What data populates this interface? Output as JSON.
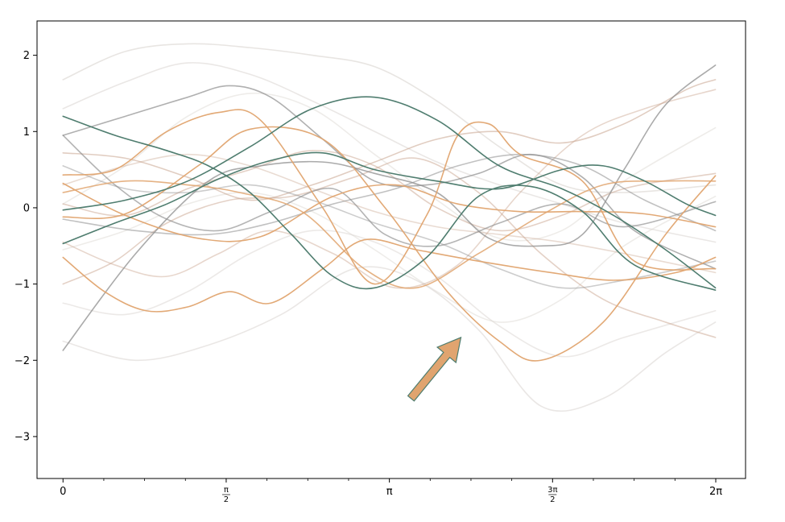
{
  "chart_data": {
    "type": "line",
    "title": "",
    "xlabel": "",
    "ylabel": "",
    "xlim": [
      -0.25,
      6.57
    ],
    "ylim": [
      -3.55,
      2.45
    ],
    "grid": false,
    "legend": "none",
    "x_ticks": [
      {
        "value": 0,
        "label": "0"
      },
      {
        "value": 1.5708,
        "num": "π",
        "den": "2"
      },
      {
        "value": 3.1416,
        "label": "π"
      },
      {
        "value": 4.7124,
        "num": "3π",
        "den": "2"
      },
      {
        "value": 6.2832,
        "label": "2π"
      }
    ],
    "y_ticks": [
      {
        "value": 2,
        "label": "2"
      },
      {
        "value": 1,
        "label": "1"
      },
      {
        "value": 0,
        "label": "0"
      },
      {
        "value": -1,
        "label": "−1"
      },
      {
        "value": -2,
        "label": "−2"
      },
      {
        "value": -3,
        "label": "−3"
      }
    ],
    "colors": {
      "orange": "#e0a46f",
      "teal": "#4f7d6f",
      "gray": "#8e8e8e",
      "tan": "#c9a48e",
      "faint": "#d9d4cf"
    },
    "series": [
      {
        "color": "orange",
        "opacity": 0.95,
        "x": [
          0,
          0.6,
          1.3,
          1.9,
          2.6,
          3.2,
          3.8,
          4.4,
          5.0,
          5.6,
          6.28
        ],
        "y": [
          0.32,
          -0.1,
          -0.4,
          -0.38,
          0.15,
          0.3,
          0.05,
          -0.05,
          -0.05,
          -0.08,
          -0.25
        ]
      },
      {
        "color": "orange",
        "opacity": 0.95,
        "x": [
          0,
          0.6,
          1.3,
          1.8,
          2.5,
          3.1,
          3.7,
          4.2,
          4.6,
          5.2,
          5.8,
          6.28
        ],
        "y": [
          -0.12,
          -0.08,
          0.55,
          1.03,
          0.9,
          0.0,
          -1.1,
          -1.75,
          -2.0,
          -1.5,
          -0.35,
          0.42
        ]
      },
      {
        "color": "orange",
        "opacity": 0.95,
        "x": [
          0,
          0.4,
          0.8,
          1.2,
          1.6,
          2.0,
          2.5,
          2.9,
          3.4,
          4.0,
          4.7,
          5.3,
          5.9,
          6.28
        ],
        "y": [
          -0.65,
          -1.1,
          -1.35,
          -1.3,
          -1.1,
          -1.25,
          -0.8,
          -0.42,
          -0.55,
          -0.7,
          -0.85,
          -0.95,
          -0.85,
          -0.65
        ]
      },
      {
        "color": "orange",
        "opacity": 0.95,
        "x": [
          0,
          0.5,
          1.0,
          1.5,
          1.9,
          2.5,
          3.0,
          3.5,
          3.8,
          4.1,
          4.4,
          5.0,
          5.5,
          6.28
        ],
        "y": [
          0.43,
          0.5,
          1.0,
          1.25,
          1.15,
          0.0,
          -1.0,
          -0.1,
          0.95,
          1.1,
          0.7,
          0.35,
          -0.7,
          -0.8
        ]
      },
      {
        "color": "orange",
        "opacity": 0.85,
        "x": [
          0,
          0.6,
          1.2,
          1.7,
          2.3,
          2.9,
          3.4,
          4.0,
          4.6,
          5.2,
          5.8,
          6.28
        ],
        "y": [
          0.2,
          0.35,
          0.3,
          0.2,
          -0.05,
          -0.8,
          -1.05,
          -0.6,
          -0.1,
          0.3,
          0.35,
          0.35
        ]
      },
      {
        "color": "teal",
        "opacity": 1.0,
        "x": [
          0,
          0.5,
          1.0,
          1.4,
          1.8,
          2.2,
          2.6,
          3.0,
          3.5,
          4.0,
          4.5,
          5.0,
          5.5,
          6.28
        ],
        "y": [
          1.2,
          0.95,
          0.75,
          0.55,
          0.2,
          -0.35,
          -0.9,
          -1.05,
          -0.65,
          0.15,
          0.28,
          -0.05,
          -0.75,
          -1.08
        ]
      },
      {
        "color": "teal",
        "opacity": 1.0,
        "x": [
          0,
          0.6,
          1.2,
          1.8,
          2.4,
          3.0,
          3.6,
          4.2,
          4.8,
          5.3,
          5.8,
          6.28
        ],
        "y": [
          -0.03,
          0.1,
          0.35,
          0.8,
          1.3,
          1.45,
          1.15,
          0.55,
          0.25,
          -0.1,
          -0.55,
          -1.05
        ]
      },
      {
        "color": "teal",
        "opacity": 1.0,
        "x": [
          0,
          0.5,
          1.0,
          1.5,
          2.0,
          2.5,
          3.0,
          3.6,
          4.2,
          4.8,
          5.2,
          5.6,
          6.0,
          6.28
        ],
        "y": [
          -0.47,
          -0.2,
          0.05,
          0.38,
          0.62,
          0.72,
          0.5,
          0.35,
          0.25,
          0.5,
          0.55,
          0.35,
          0.05,
          -0.1
        ]
      },
      {
        "color": "gray",
        "opacity": 0.75,
        "x": [
          0,
          0.7,
          1.4,
          1.9,
          2.5,
          3.0,
          3.6,
          4.1,
          4.6,
          5.0,
          5.4,
          5.8,
          6.28
        ],
        "y": [
          -1.87,
          -0.6,
          0.35,
          0.55,
          0.6,
          0.45,
          0.2,
          -0.4,
          -0.5,
          -0.35,
          0.5,
          1.35,
          1.87
        ]
      },
      {
        "color": "gray",
        "opacity": 0.7,
        "x": [
          0,
          0.6,
          1.2,
          1.6,
          2.0,
          2.5,
          3.0,
          3.5,
          4.0,
          4.5,
          5.0,
          5.5,
          6.28
        ],
        "y": [
          0.95,
          1.2,
          1.45,
          1.6,
          1.45,
          0.9,
          0.35,
          0.3,
          0.45,
          0.7,
          0.4,
          -0.3,
          -0.8
        ]
      },
      {
        "color": "gray",
        "opacity": 0.65,
        "x": [
          0,
          0.5,
          1.0,
          1.5,
          2.0,
          2.6,
          3.1,
          3.6,
          4.2,
          4.8,
          5.4,
          6.28
        ],
        "y": [
          0.95,
          0.3,
          -0.15,
          -0.3,
          -0.05,
          0.25,
          -0.35,
          -0.5,
          -0.2,
          0.05,
          -0.25,
          0.08
        ]
      },
      {
        "color": "gray",
        "opacity": 0.55,
        "x": [
          0,
          0.7,
          1.4,
          2.0,
          2.6,
          3.2,
          3.8,
          4.4,
          5.0,
          5.6,
          6.28
        ],
        "y": [
          -0.15,
          -0.3,
          -0.35,
          -0.2,
          0.05,
          0.25,
          0.55,
          0.7,
          0.55,
          0.1,
          -0.3
        ]
      },
      {
        "color": "gray",
        "opacity": 0.45,
        "x": [
          0,
          0.6,
          1.2,
          1.8,
          2.4,
          3.0,
          3.6,
          4.2,
          4.8,
          5.4,
          6.28
        ],
        "y": [
          0.55,
          0.25,
          0.2,
          0.3,
          0.1,
          -0.2,
          -0.45,
          -0.8,
          -1.05,
          -0.95,
          -0.7
        ]
      },
      {
        "color": "tan",
        "opacity": 0.55,
        "x": [
          0,
          0.6,
          1.2,
          1.8,
          2.4,
          3.0,
          3.6,
          4.2,
          4.8,
          5.4,
          6.0,
          6.28
        ],
        "y": [
          0.72,
          0.65,
          0.4,
          0.1,
          0.3,
          0.6,
          0.9,
          1.0,
          0.85,
          1.1,
          1.55,
          1.68
        ]
      },
      {
        "color": "tan",
        "opacity": 0.5,
        "x": [
          0,
          0.5,
          1.0,
          1.6,
          2.2,
          2.8,
          3.4,
          4.0,
          4.6,
          5.2,
          5.8,
          6.28
        ],
        "y": [
          -1.0,
          -0.7,
          -0.2,
          0.1,
          0.15,
          0.4,
          0.65,
          0.2,
          -0.6,
          -1.2,
          -1.5,
          -1.7
        ]
      },
      {
        "color": "tan",
        "opacity": 0.5,
        "x": [
          0,
          0.6,
          1.2,
          1.8,
          2.4,
          3.0,
          3.6,
          4.2,
          4.8,
          5.4,
          6.28
        ],
        "y": [
          0.05,
          -0.1,
          0.25,
          0.5,
          0.75,
          0.55,
          0.0,
          -0.3,
          -0.1,
          0.25,
          0.45
        ]
      },
      {
        "color": "tan",
        "opacity": 0.45,
        "x": [
          0,
          0.5,
          1.0,
          1.5,
          2.0,
          2.6,
          3.2,
          3.8,
          4.4,
          5.0,
          5.6,
          6.28
        ],
        "y": [
          -0.45,
          -0.75,
          -0.9,
          -0.6,
          -0.3,
          -0.6,
          -1.05,
          -0.75,
          0.2,
          0.95,
          1.3,
          1.55
        ]
      },
      {
        "color": "tan",
        "opacity": 0.4,
        "x": [
          0,
          0.6,
          1.2,
          1.8,
          2.4,
          3.0,
          3.6,
          4.2,
          4.8,
          5.4,
          6.28
        ],
        "y": [
          0.3,
          0.55,
          0.7,
          0.55,
          0.25,
          -0.05,
          -0.25,
          -0.35,
          -0.45,
          -0.6,
          -0.85
        ]
      },
      {
        "color": "faint",
        "opacity": 0.6,
        "x": [
          0,
          0.6,
          1.2,
          1.8,
          2.4,
          3.0,
          3.6,
          4.2,
          4.8,
          5.4,
          6.28
        ],
        "y": [
          1.68,
          2.05,
          2.15,
          2.1,
          2.0,
          1.85,
          1.4,
          0.8,
          0.3,
          0.2,
          0.3
        ]
      },
      {
        "color": "faint",
        "opacity": 0.55,
        "x": [
          0,
          0.7,
          1.4,
          2.1,
          2.8,
          3.4,
          4.0,
          4.6,
          5.2,
          5.8,
          6.28
        ],
        "y": [
          -1.75,
          -2.0,
          -1.8,
          -1.4,
          -0.8,
          -0.95,
          -1.6,
          -2.6,
          -2.5,
          -1.9,
          -1.5
        ]
      },
      {
        "color": "faint",
        "opacity": 0.55,
        "x": [
          0,
          0.6,
          1.2,
          1.8,
          2.4,
          3.0,
          3.6,
          4.2,
          4.8,
          5.4,
          6.28
        ],
        "y": [
          1.3,
          1.65,
          1.9,
          1.75,
          1.4,
          1.0,
          0.6,
          0.3,
          0.05,
          -0.2,
          -0.45
        ]
      },
      {
        "color": "faint",
        "opacity": 0.5,
        "x": [
          0,
          0.6,
          1.2,
          1.8,
          2.4,
          3.0,
          3.6,
          4.2,
          4.8,
          5.4,
          6.28
        ],
        "y": [
          -1.25,
          -1.4,
          -1.1,
          -0.6,
          -0.3,
          -0.45,
          -0.9,
          -1.55,
          -1.95,
          -1.7,
          -1.35
        ]
      },
      {
        "color": "faint",
        "opacity": 0.45,
        "x": [
          0,
          0.6,
          1.2,
          1.8,
          2.4,
          3.0,
          3.6,
          4.2,
          4.8,
          5.4,
          6.28
        ],
        "y": [
          0.05,
          0.55,
          1.2,
          1.5,
          1.3,
          0.7,
          0.1,
          -0.4,
          -0.3,
          0.35,
          1.05
        ]
      },
      {
        "color": "faint",
        "opacity": 0.45,
        "x": [
          0,
          0.6,
          1.2,
          1.8,
          2.4,
          3.0,
          3.6,
          4.2,
          4.8,
          5.4,
          6.28
        ],
        "y": [
          -0.55,
          -0.3,
          0.05,
          0.2,
          -0.05,
          -0.55,
          -1.1,
          -1.5,
          -1.2,
          -0.5,
          0.15
        ]
      }
    ],
    "annotations": [
      {
        "type": "arrow",
        "from": [
          3.35,
          -2.5
        ],
        "to": [
          3.83,
          -1.7
        ],
        "facecolor": "#e0a46f",
        "edgecolor": "#4f7d6f"
      }
    ]
  }
}
